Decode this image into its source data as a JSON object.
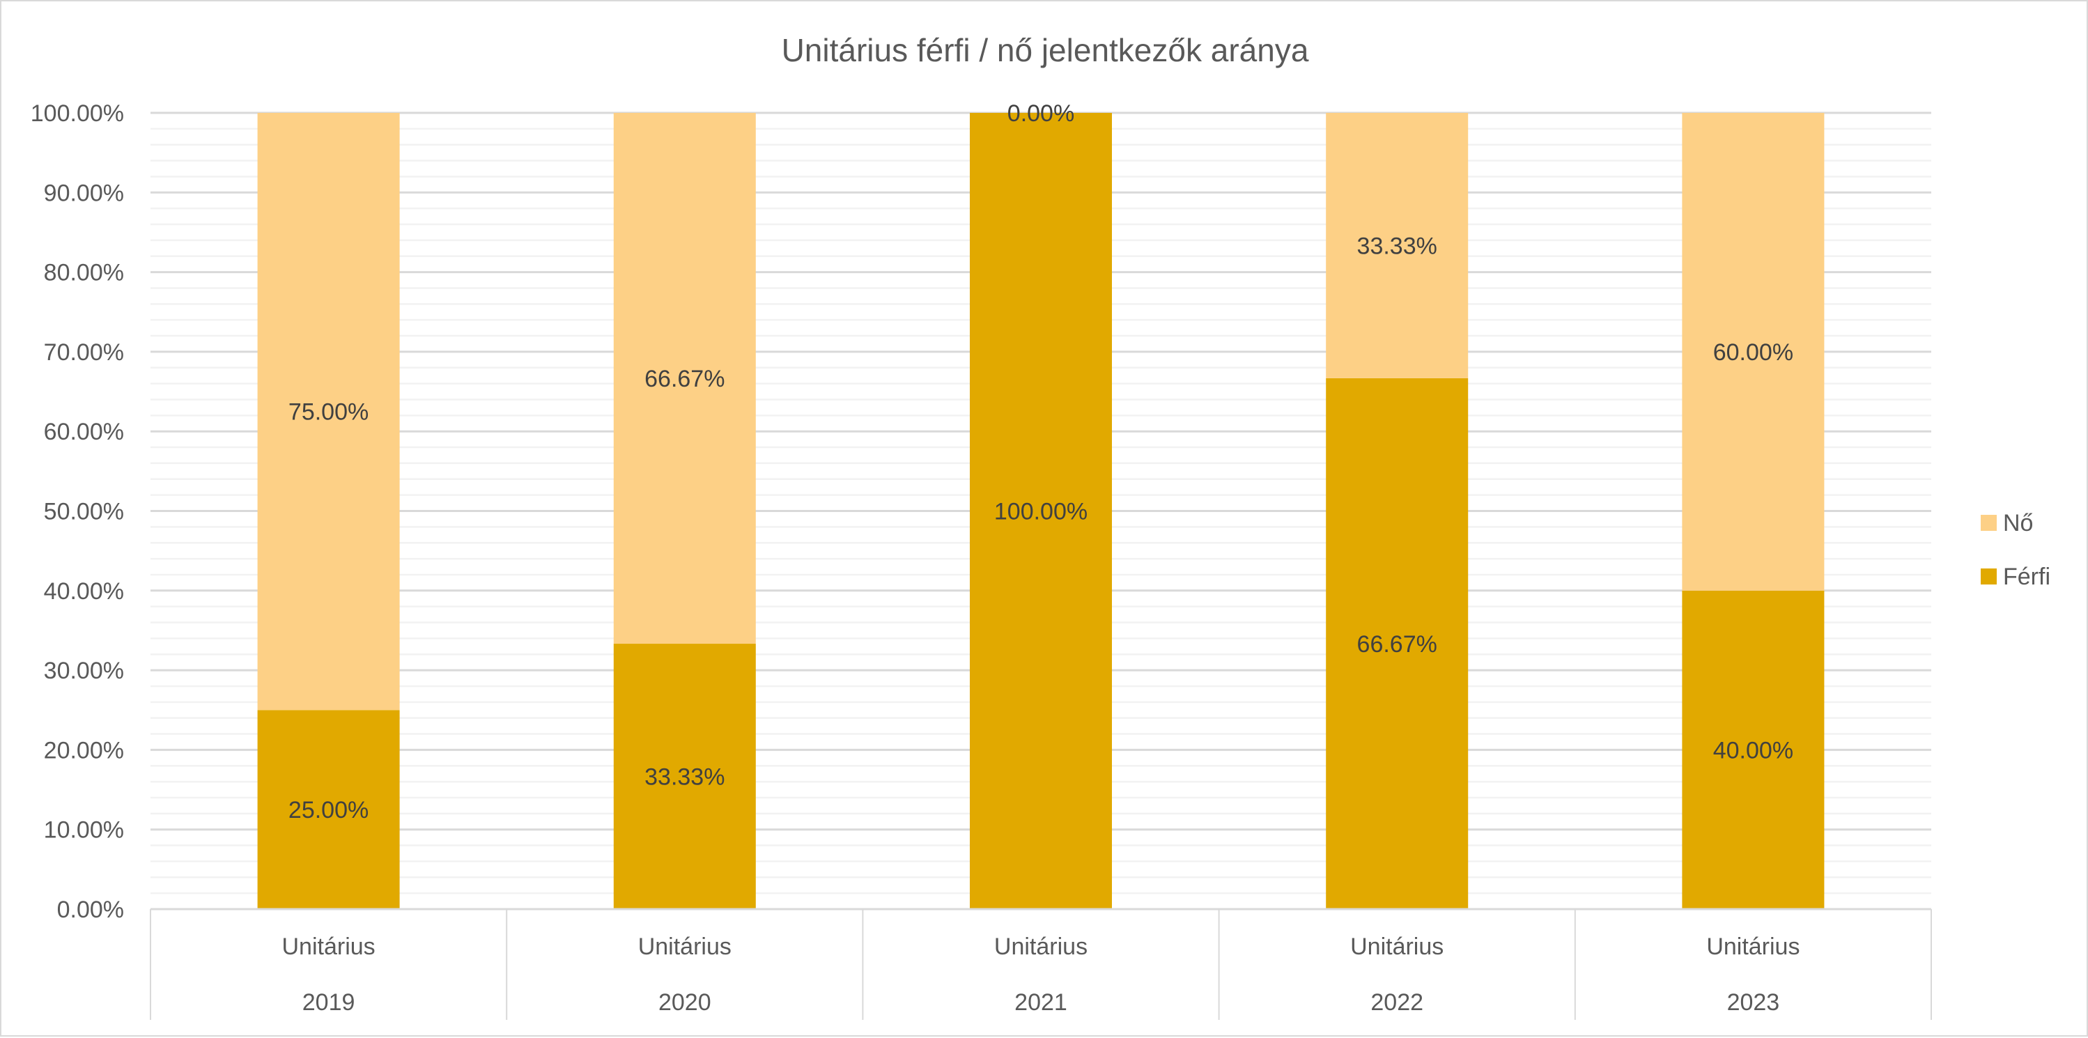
{
  "chart_data": {
    "type": "bar",
    "stacked": true,
    "percent_stacked": true,
    "title": "Unitárius férfi / nő jelentkezők aránya",
    "xlabel": "",
    "ylabel": "",
    "categories": [
      {
        "group": "Unitárius",
        "year": "2019"
      },
      {
        "group": "Unitárius",
        "year": "2020"
      },
      {
        "group": "Unitárius",
        "year": "2021"
      },
      {
        "group": "Unitárius",
        "year": "2022"
      },
      {
        "group": "Unitárius",
        "year": "2023"
      }
    ],
    "series": [
      {
        "name": "Férfi",
        "color": "#E1A900",
        "values": [
          25.0,
          33.33,
          100.0,
          66.67,
          40.0
        ],
        "labels": [
          "25.00%",
          "33.33%",
          "100.00%",
          "66.67%",
          "40.00%"
        ]
      },
      {
        "name": "Nő",
        "color": "#FDD086",
        "values": [
          75.0,
          66.67,
          0.0,
          33.33,
          60.0
        ],
        "labels": [
          "75.00%",
          "66.67%",
          "0.00%",
          "33.33%",
          "60.00%"
        ]
      }
    ],
    "ylim": [
      0,
      100
    ],
    "yticks": [
      "0.00%",
      "10.00%",
      "20.00%",
      "30.00%",
      "40.00%",
      "50.00%",
      "60.00%",
      "70.00%",
      "80.00%",
      "90.00%",
      "100.00%"
    ],
    "grid": {
      "major_step": 10,
      "minor_step": 2,
      "major_color": "#D9D9D9",
      "minor_color": "#F2F2F2"
    },
    "legend": {
      "position": "right",
      "items": [
        {
          "label": "Nő",
          "color": "#FDD086"
        },
        {
          "label": "Férfi",
          "color": "#E1A900"
        }
      ]
    }
  }
}
